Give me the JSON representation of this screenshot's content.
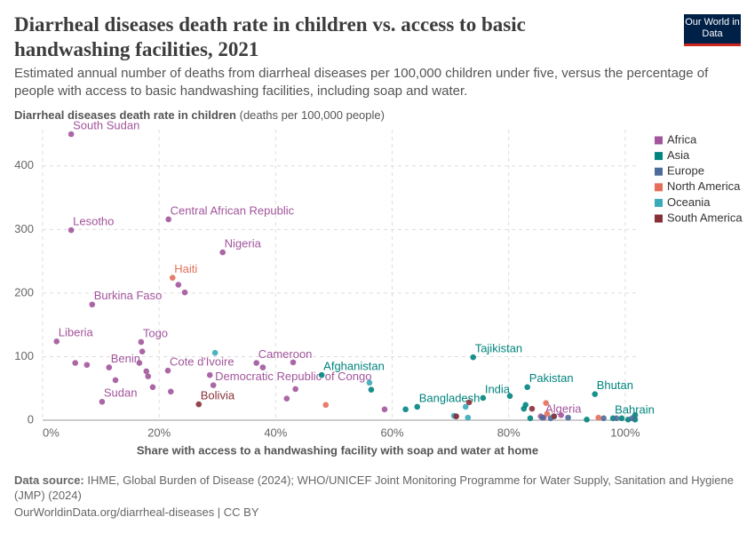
{
  "header": {
    "title": "Diarrheal diseases death rate in children vs. access to basic handwashing facilities, 2021",
    "subtitle": "Estimated annual number of deaths from diarrheal diseases per 100,000 children under five, versus the percentage of people with access to basic handwashing facilities, including soap and water.",
    "logo": "Our World in Data"
  },
  "chart_data": {
    "type": "scatter",
    "y_label": "Diarrheal diseases death rate in children",
    "y_unit": "(deaths per 100,000 people)",
    "x_label": "Share with access to a handwashing facility with soap and water at home",
    "xlim": [
      0,
      102
    ],
    "ylim": [
      0,
      450
    ],
    "xticks": [
      {
        "value": 0,
        "label": "0%"
      },
      {
        "value": 20,
        "label": "20%"
      },
      {
        "value": 40,
        "label": "40%"
      },
      {
        "value": 60,
        "label": "60%"
      },
      {
        "value": 80,
        "label": "80%"
      },
      {
        "value": 100,
        "label": "100%"
      }
    ],
    "yticks": [
      0,
      100,
      200,
      300,
      400
    ],
    "grid": true,
    "legend": "right",
    "series": [
      {
        "name": "Africa",
        "color": "#a2559c",
        "x": [
          4.9,
          4.9,
          21.6,
          30.9,
          8.5,
          2.4,
          16.9,
          11.4,
          21.5,
          36.7,
          29.3,
          10.2,
          86,
          5.6,
          7.6,
          12.5,
          16.6,
          17.1,
          17.8,
          18.1,
          18.9,
          22,
          23.3,
          24.4,
          28.7,
          37.8,
          43,
          43.4,
          41.9,
          58.7,
          70.9,
          85.5,
          89
        ],
        "values": [
          450,
          299,
          316,
          264,
          182,
          124,
          123,
          83,
          78,
          90,
          55,
          29,
          4,
          90,
          87,
          63,
          90,
          108,
          77,
          69,
          52,
          45,
          213,
          201,
          71,
          83,
          91,
          49,
          34,
          17,
          6,
          6,
          8
        ],
        "labels": [
          "South Sudan",
          "Lesotho",
          "Central African Republic",
          "Nigeria",
          "Burkina Faso",
          "Liberia",
          "Togo",
          "Benin",
          "Cote d'Ivoire",
          "Cameroon",
          "Democratic Republic of Congo",
          "Sudan",
          "Algeria",
          null,
          null,
          null,
          null,
          null,
          null,
          null,
          null,
          null,
          null,
          null,
          null,
          null,
          null,
          null,
          null,
          null,
          null,
          null,
          null
        ]
      },
      {
        "name": "Asia",
        "color": "#00847e",
        "x": [
          73.9,
          47.9,
          75.6,
          83.2,
          64.3,
          94.8,
          97.9,
          62.3,
          56.4,
          80.2,
          82.6,
          82.9,
          83.7,
          93.4,
          99.4,
          101.7,
          101.7,
          100.5
        ],
        "values": [
          99,
          71,
          35,
          52,
          21,
          41,
          3,
          17,
          48,
          38,
          18,
          24,
          3,
          1,
          3,
          8,
          1,
          1
        ],
        "labels": [
          "Tajikistan",
          "Afghanistan",
          "India",
          "Pakistan",
          "Bangladesh",
          "Bhutan",
          "Bahrain",
          null,
          null,
          null,
          null,
          null,
          null,
          null,
          null,
          null,
          null,
          null
        ]
      },
      {
        "name": "Europe",
        "color": "#4c6a9c",
        "x": [
          85.8,
          87.2,
          90.2,
          96.3,
          98.5,
          101.2
        ],
        "values": [
          4,
          3,
          4,
          3,
          3,
          3
        ],
        "labels": [
          null,
          null,
          null,
          null,
          null,
          null
        ]
      },
      {
        "name": "North America",
        "color": "#e56e5a",
        "x": [
          22.3,
          48.6,
          86.4,
          86.6,
          95.4
        ],
        "values": [
          224,
          24,
          27,
          10,
          4
        ],
        "labels": [
          "Haiti",
          null,
          null,
          null,
          null
        ]
      },
      {
        "name": "Oceania",
        "color": "#38aaba",
        "x": [
          29.6,
          56.1,
          70.6,
          73,
          72.6,
          87.7
        ],
        "values": [
          106,
          59,
          7,
          4,
          21,
          6
        ],
        "labels": [
          null,
          null,
          null,
          null,
          null,
          null
        ]
      },
      {
        "name": "South America",
        "color": "#883039",
        "x": [
          26.8,
          73.2,
          71,
          84,
          87.8
        ],
        "values": [
          25,
          28,
          6,
          18,
          6
        ],
        "labels": [
          "Bolivia",
          null,
          null,
          null,
          null
        ]
      }
    ]
  },
  "footer": {
    "source_label": "Data source:",
    "source": "IHME, Global Burden of Disease (2024); WHO/UNICEF Joint Monitoring Programme for Water Supply, Sanitation and Hygiene (JMP) (2024)",
    "url": "OurWorldinData.org/diarrheal-diseases | CC BY"
  }
}
